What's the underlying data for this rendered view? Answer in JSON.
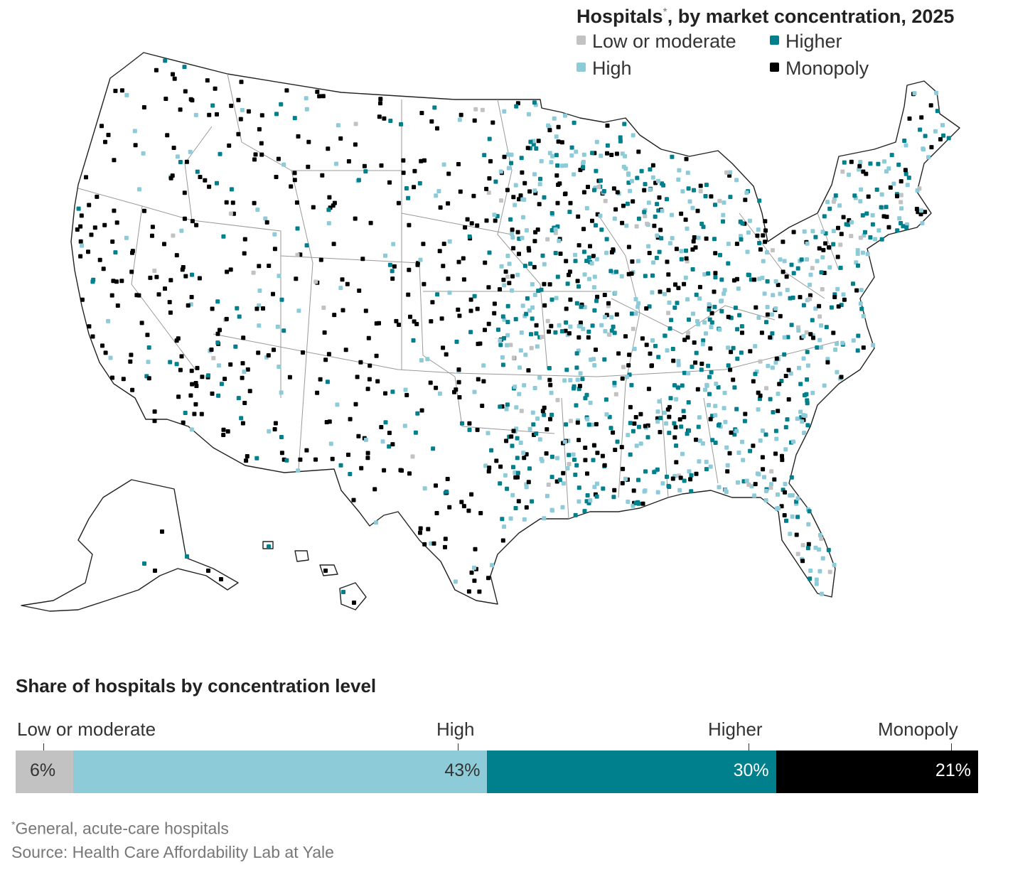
{
  "map": {
    "title": "Hospitals",
    "title_marker": "*",
    "title_rest": ", by market concentration, 2025",
    "legend": [
      {
        "key": "low",
        "label": "Low or moderate",
        "color": "#c2c2c2"
      },
      {
        "key": "higher",
        "label": "Higher",
        "color": "#007f8c"
      },
      {
        "key": "high",
        "label": "High",
        "color": "#8ecbd8"
      },
      {
        "key": "monopoly",
        "label": "Monopoly",
        "color": "#000000"
      }
    ]
  },
  "share": {
    "title": "Share of hospitals by concentration level",
    "segments": [
      {
        "label": "Low or moderate",
        "value": 6,
        "display": "6%",
        "color": "#c2c2c2",
        "text_color": "#333333"
      },
      {
        "label": "High",
        "value": 43,
        "display": "43%",
        "color": "#8ecbd8",
        "text_color": "#333333"
      },
      {
        "label": "Higher",
        "value": 30,
        "display": "30%",
        "color": "#007f8c",
        "text_color": "#ffffff"
      },
      {
        "label": "Monopoly",
        "value": 21,
        "display": "21%",
        "color": "#000000",
        "text_color": "#ffffff"
      }
    ]
  },
  "footnote": {
    "marker": "*",
    "text": "General, acute-care hospitals",
    "source": "Source: Health Care Affordability Lab at Yale"
  }
}
